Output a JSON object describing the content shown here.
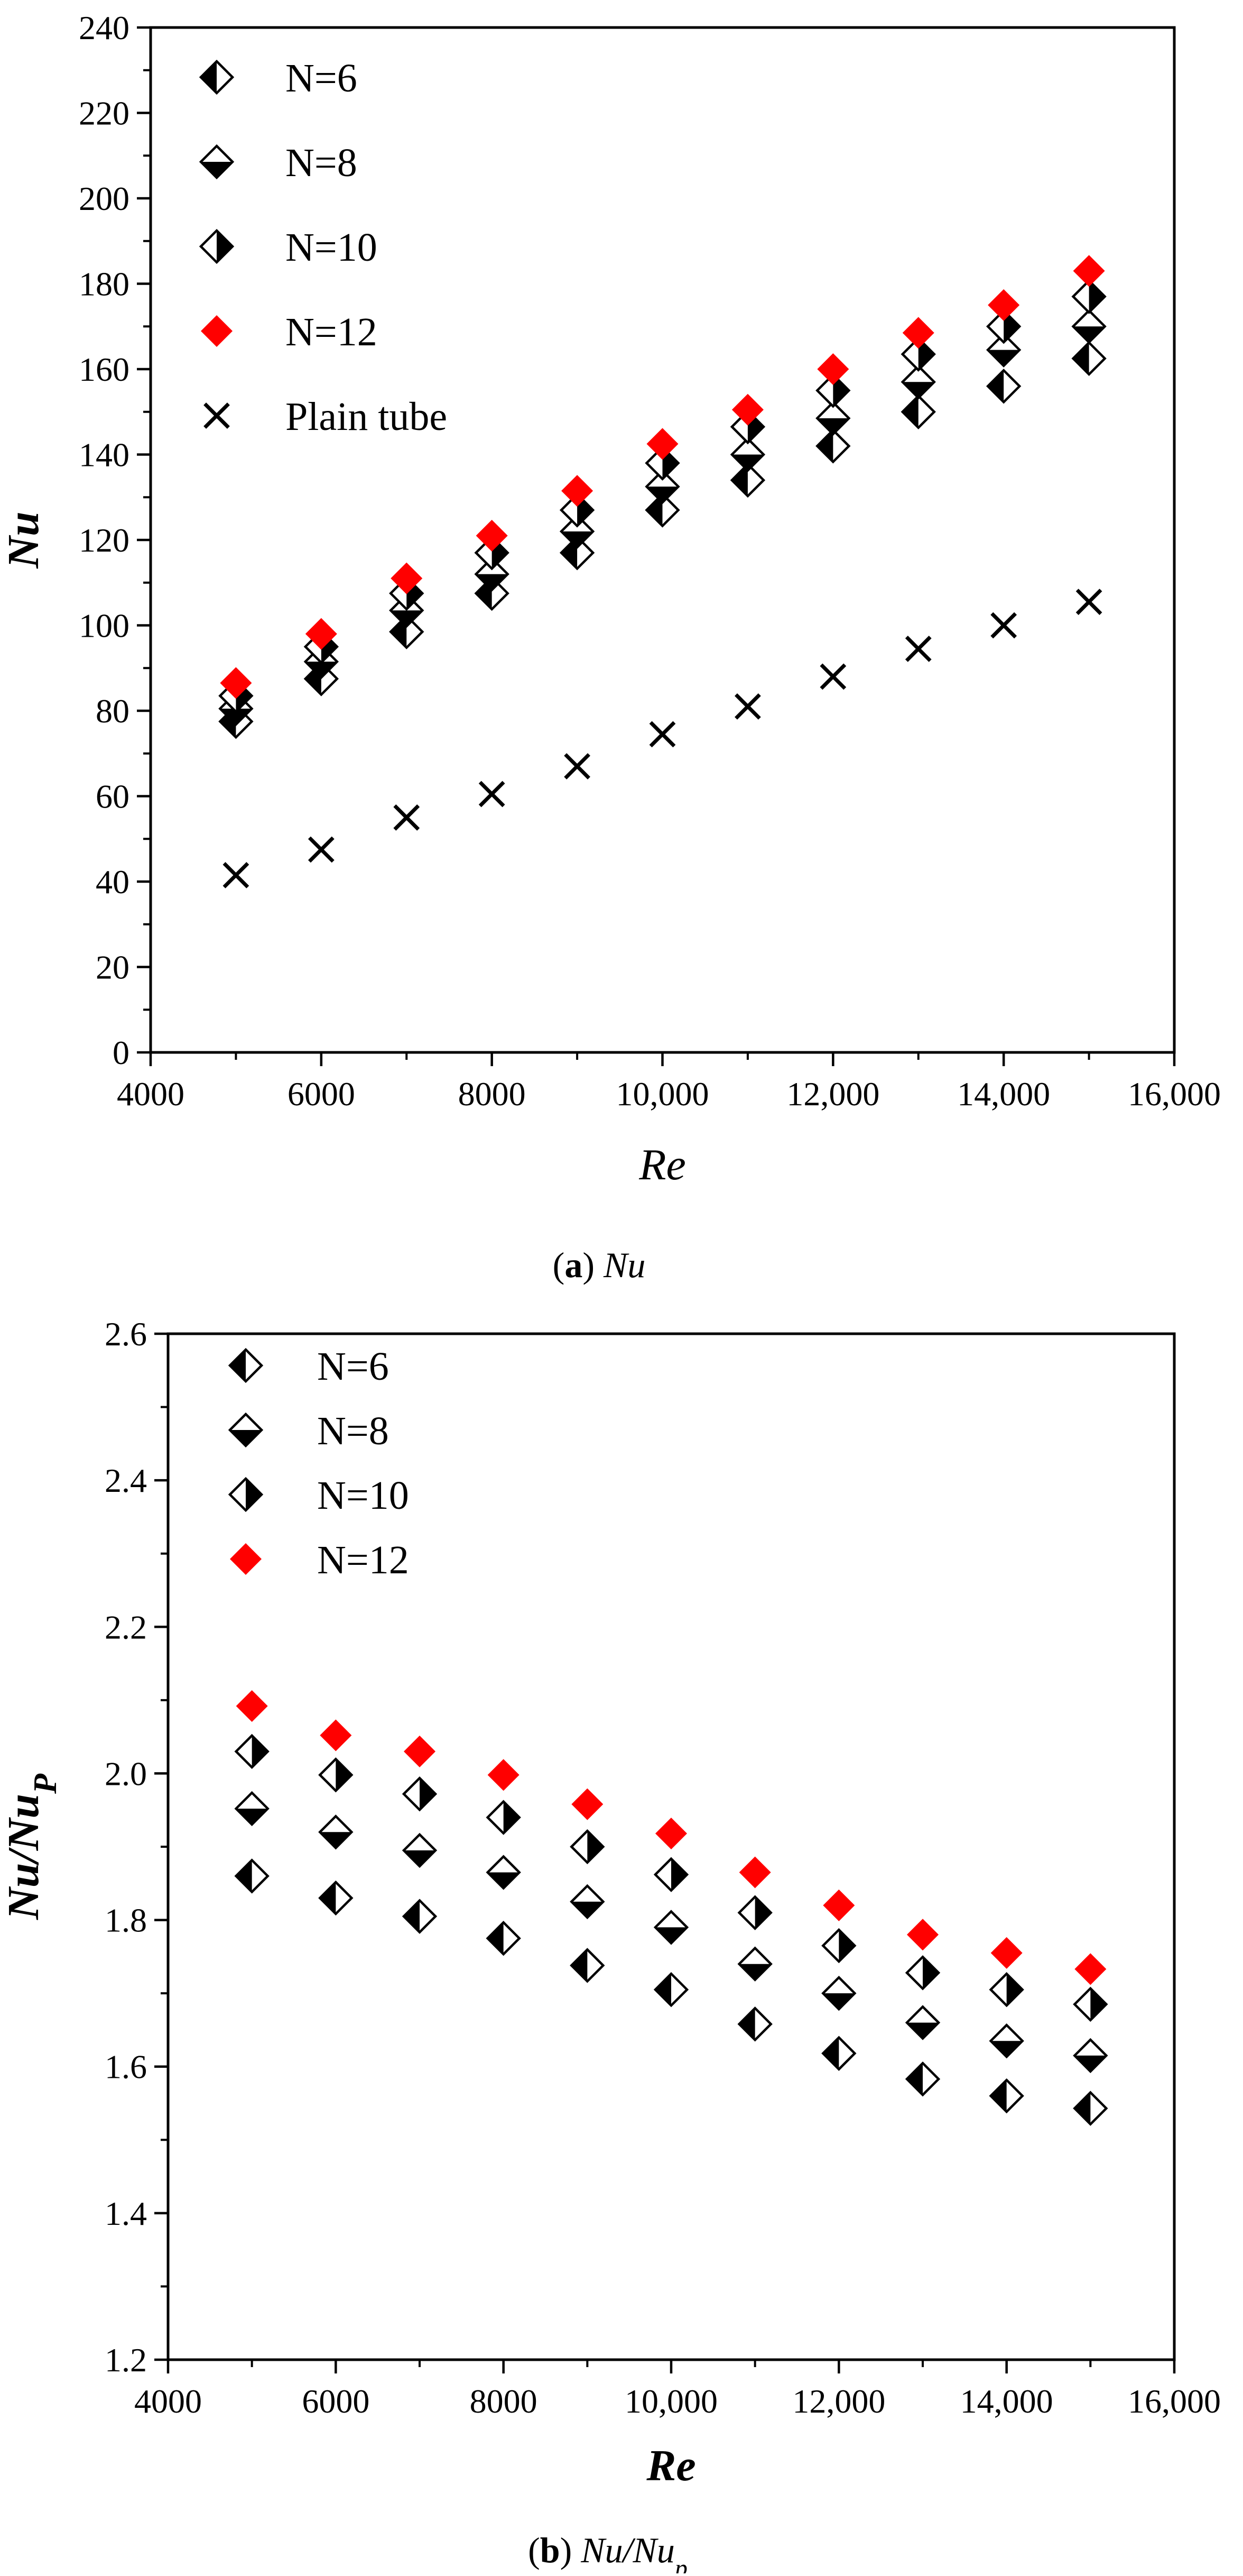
{
  "colors": {
    "highlight": "#ff0000",
    "ink": "#000000",
    "background": "#ffffff"
  },
  "marker_styles": {
    "N=6": "diamond-left-filled",
    "N=8": "diamond-bottom-filled",
    "N=10": "diamond-right-filled",
    "N=12": "diamond-red",
    "Plain tube": "cross"
  },
  "chart_data": [
    {
      "type": "scatter",
      "panel": "a",
      "title": "",
      "caption": {
        "label": "a",
        "text": "Nu"
      },
      "xlabel": "Re",
      "ylabel": "Nu",
      "xlim": [
        4000,
        16000
      ],
      "ylim": [
        0,
        240
      ],
      "xticks": [
        4000,
        6000,
        8000,
        10000,
        12000,
        14000,
        16000
      ],
      "xtick_labels": [
        "4000",
        "6000",
        "8000",
        "10,000",
        "12,000",
        "14,000",
        "16,000"
      ],
      "yticks": [
        0,
        20,
        40,
        60,
        80,
        100,
        120,
        140,
        160,
        180,
        200,
        220,
        240
      ],
      "ytick_labels": [
        "0",
        "20",
        "40",
        "60",
        "80",
        "100",
        "120",
        "140",
        "160",
        "180",
        "200",
        "220",
        "240"
      ],
      "legend_position": "top-left",
      "x": [
        5000,
        6000,
        7000,
        8000,
        9000,
        10000,
        11000,
        12000,
        13000,
        14000,
        15000
      ],
      "series": [
        {
          "name": "N=6",
          "values": [
            77.5,
            87.5,
            98.5,
            107.5,
            117,
            127,
            134,
            142,
            150,
            156,
            162.5
          ]
        },
        {
          "name": "N=8",
          "values": [
            80.5,
            91.5,
            103.5,
            112,
            122,
            132.5,
            140,
            148.5,
            157,
            164.5,
            170
          ]
        },
        {
          "name": "N=10",
          "values": [
            83.5,
            95,
            107.5,
            117,
            127,
            138,
            146.5,
            155,
            163.5,
            170,
            177
          ]
        },
        {
          "name": "N=12",
          "values": [
            86.5,
            98,
            111,
            121,
            131.5,
            142.5,
            150.5,
            160,
            168.5,
            175,
            183
          ]
        },
        {
          "name": "Plain tube",
          "values": [
            41.5,
            47.5,
            55,
            60.5,
            67,
            74.5,
            81,
            88,
            94.5,
            100,
            105.5
          ]
        }
      ]
    },
    {
      "type": "scatter",
      "panel": "b",
      "title": "",
      "caption": {
        "label": "b",
        "text": "Nu/Nu",
        "sub": "p"
      },
      "xlabel": "Re",
      "ylabel": "Nu/Nu",
      "ylabel_sub": "P",
      "xlim": [
        4000,
        16000
      ],
      "ylim": [
        1.2,
        2.6
      ],
      "xticks": [
        4000,
        6000,
        8000,
        10000,
        12000,
        14000,
        16000
      ],
      "xtick_labels": [
        "4000",
        "6000",
        "8000",
        "10,000",
        "12,000",
        "14,000",
        "16,000"
      ],
      "yticks": [
        1.2,
        1.4,
        1.6,
        1.8,
        2.0,
        2.2,
        2.4,
        2.6
      ],
      "ytick_labels": [
        "1.2",
        "1.4",
        "1.6",
        "1.8",
        "2.0",
        "2.2",
        "2.4",
        "2.6"
      ],
      "legend_position": "top-left",
      "x": [
        5000,
        6000,
        7000,
        8000,
        9000,
        10000,
        11000,
        12000,
        13000,
        14000,
        15000
      ],
      "series": [
        {
          "name": "N=6",
          "values": [
            1.86,
            1.83,
            1.805,
            1.775,
            1.738,
            1.705,
            1.658,
            1.618,
            1.583,
            1.56,
            1.543
          ]
        },
        {
          "name": "N=8",
          "values": [
            1.952,
            1.92,
            1.895,
            1.865,
            1.825,
            1.79,
            1.74,
            1.7,
            1.66,
            1.635,
            1.615
          ]
        },
        {
          "name": "N=10",
          "values": [
            2.03,
            1.998,
            1.972,
            1.94,
            1.9,
            1.862,
            1.81,
            1.765,
            1.728,
            1.705,
            1.685
          ]
        },
        {
          "name": "N=12",
          "values": [
            2.092,
            2.052,
            2.03,
            1.998,
            1.958,
            1.918,
            1.865,
            1.82,
            1.78,
            1.755,
            1.733
          ]
        }
      ]
    }
  ]
}
